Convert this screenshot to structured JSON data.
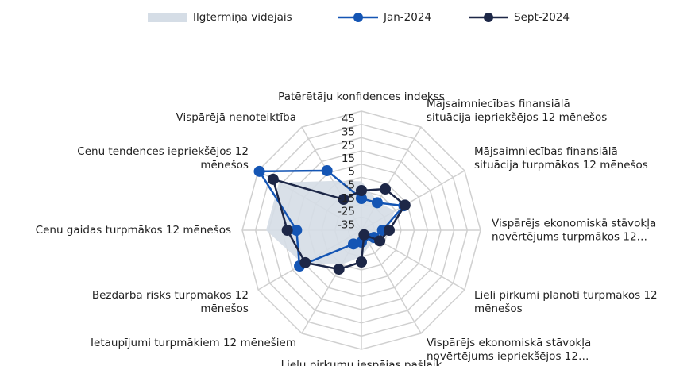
{
  "chart_data": {
    "type": "radar",
    "categories": [
      "Patērētāju konfidences indekss",
      "Mājsaimniecības finansiālā situācija iepriekšējos 12 mēnešos",
      "Mājsaimniecības finansiālā situācija turpmākos 12 mēnešos",
      "Vispārējs ekonomiskā stāvokļa novērtējums turpmākos 12…",
      "Lieli pirkumi plānoti turpmākos 12 mēnešos",
      "Vispārējs ekonomiskā stāvokļa novērtējums iepriekšējos 12…",
      "Lielu pirkumu iespējas pašlaik",
      "Ietaupījumi turpmākiem 12 mēnešiem",
      "Bezdarba risks turpmākos 12 mēnešos",
      "Cenu gaidas turpmākos 12 mēnešos",
      "Cenu tendences iepriekšējos 12 mēnešos",
      "Vispārējā nenoteiktība"
    ],
    "series": [
      {
        "name": "Ilgtermiņa vidējais",
        "color": "#d5dde6",
        "fill": true,
        "values": [
          -8,
          -20,
          -16,
          -25,
          -30,
          -32,
          -25,
          -15,
          6,
          27,
          27,
          -2
        ]
      },
      {
        "name": "Jan-2024",
        "color": "#1455b4",
        "fill": false,
        "values": [
          -21,
          -21,
          -8,
          -29,
          -34,
          -40,
          -36,
          -33,
          9,
          4,
          44,
          7
        ]
      },
      {
        "name": "Sept-2024",
        "color": "#1d2747",
        "fill": false,
        "values": [
          -15,
          -9,
          -7,
          -24,
          -29,
          -41,
          -21,
          -11,
          4,
          11,
          32,
          -18
        ]
      }
    ],
    "ylim": [
      -45,
      45
    ],
    "yticks": [
      -35,
      -25,
      -15,
      -5,
      5,
      15,
      25,
      35,
      45
    ],
    "grid": true
  }
}
